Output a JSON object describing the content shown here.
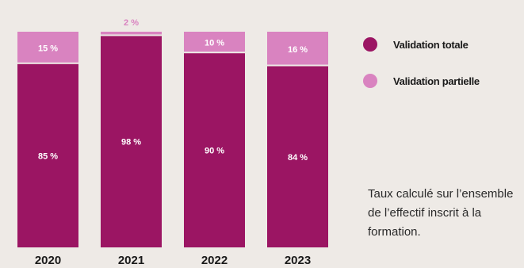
{
  "chart_data": {
    "type": "bar",
    "stacked": true,
    "categories": [
      "2020",
      "2021",
      "2022",
      "2023"
    ],
    "series": [
      {
        "name": "Validation totale",
        "values": [
          85,
          98,
          90,
          84
        ],
        "labels": [
          "85 %",
          "98 %",
          "90 %",
          "84 %"
        ],
        "color": "#9b1563"
      },
      {
        "name": "Validation partielle",
        "values": [
          15,
          2,
          10,
          16
        ],
        "labels": [
          "15 %",
          "2 %",
          "10 %",
          "16 %"
        ],
        "color": "#d983c0"
      }
    ],
    "ylim": [
      0,
      100
    ],
    "grid": false,
    "legend": "right"
  },
  "note": "Taux calculé sur l’ensemble de l’effectif inscrit à la formation.",
  "colors": {
    "background": "#eeeae6",
    "text": "#1a1a1a"
  }
}
